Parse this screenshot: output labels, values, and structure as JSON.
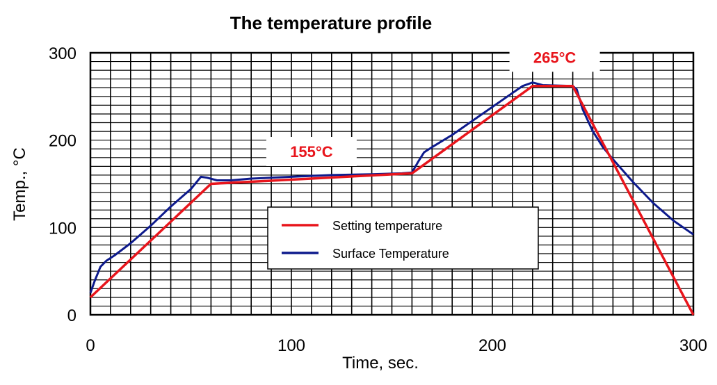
{
  "chart_data": {
    "type": "line",
    "title": "The temperature profile",
    "xlabel": "Time, sec.",
    "ylabel": "Temp., °C",
    "xlim": [
      0,
      300
    ],
    "ylim": [
      0,
      300
    ],
    "x_ticks": [
      0,
      100,
      200,
      300
    ],
    "y_ticks": [
      0,
      100,
      200,
      300
    ],
    "grid": true,
    "legend_position": "center-right",
    "series": [
      {
        "name": "Setting temperature",
        "color": "#e8151c",
        "points": [
          [
            0,
            20
          ],
          [
            60,
            150
          ],
          [
            160,
            162
          ],
          [
            220,
            262
          ],
          [
            240,
            262
          ],
          [
            300,
            0
          ]
        ]
      },
      {
        "name": "Surface Temperature",
        "color": "#0d1a8c",
        "points": [
          [
            0,
            25
          ],
          [
            2,
            38
          ],
          [
            5,
            55
          ],
          [
            8,
            62
          ],
          [
            12,
            68
          ],
          [
            20,
            82
          ],
          [
            30,
            102
          ],
          [
            40,
            124
          ],
          [
            50,
            144
          ],
          [
            55,
            158
          ],
          [
            58,
            157
          ],
          [
            63,
            154
          ],
          [
            70,
            154
          ],
          [
            80,
            156
          ],
          [
            100,
            158
          ],
          [
            120,
            160
          ],
          [
            140,
            161
          ],
          [
            155,
            162
          ],
          [
            160,
            163
          ],
          [
            163,
            175
          ],
          [
            166,
            186
          ],
          [
            170,
            192
          ],
          [
            180,
            206
          ],
          [
            190,
            222
          ],
          [
            200,
            238
          ],
          [
            210,
            254
          ],
          [
            215,
            262
          ],
          [
            220,
            266
          ],
          [
            225,
            263
          ],
          [
            240,
            262
          ],
          [
            242,
            258
          ],
          [
            245,
            235
          ],
          [
            250,
            210
          ],
          [
            255,
            192
          ],
          [
            260,
            178
          ],
          [
            270,
            152
          ],
          [
            280,
            128
          ],
          [
            290,
            108
          ],
          [
            300,
            92
          ]
        ]
      }
    ],
    "annotations": [
      {
        "text": "155°C",
        "x": 110,
        "y": 187
      },
      {
        "text": "265°C",
        "x": 231,
        "y": 295
      }
    ]
  }
}
